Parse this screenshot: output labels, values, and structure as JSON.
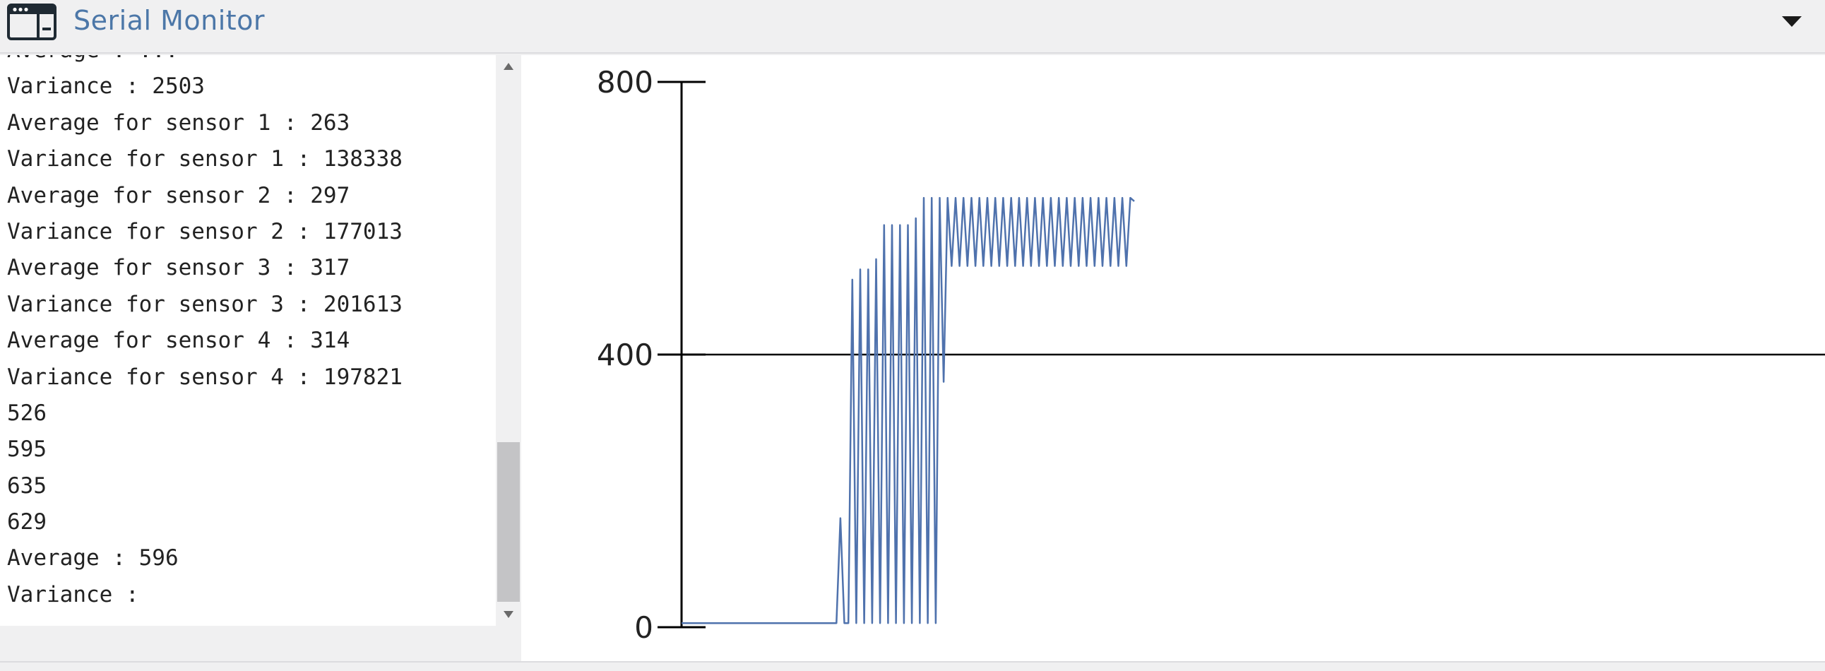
{
  "header": {
    "title": "Serial Monitor",
    "icon": "terminal-window-icon",
    "toggle_icon": "caret-down-icon"
  },
  "console": {
    "lines": [
      "Average : ...",
      "Variance : 2503",
      "Average for sensor 1 : 263",
      "Variance for sensor 1 : 138338",
      "Average for sensor 2 : 297",
      "Variance for sensor 2 : 177013",
      "Average for sensor 3 : 317",
      "Variance for sensor 3 : 201613",
      "Average for sensor 4 : 314",
      "Variance for sensor 4 : 197821",
      "526",
      "595",
      "635",
      "629",
      "Average : 596",
      "Variance :"
    ]
  },
  "colors": {
    "accent": "#4c77a8",
    "series": "#4f72ad",
    "axis": "#000000"
  },
  "chart_data": {
    "type": "line",
    "title": "",
    "xlabel": "",
    "ylabel": "",
    "ylim": [
      0,
      800
    ],
    "yticks": [
      0,
      400,
      800
    ],
    "xlim": [
      0,
      100
    ],
    "legend": "none",
    "gridlines_y": [
      400
    ],
    "series": [
      {
        "values": [
          6,
          6,
          6,
          6,
          6,
          6,
          6,
          6,
          6,
          6,
          6,
          6,
          6,
          6,
          6,
          6,
          6,
          6,
          6,
          6,
          6,
          6,
          6,
          6,
          6,
          6,
          6,
          6,
          6,
          6,
          6,
          6,
          6,
          6,
          6,
          6,
          6,
          6,
          6,
          6,
          160,
          6,
          6,
          510,
          6,
          525,
          6,
          525,
          6,
          540,
          6,
          590,
          6,
          590,
          6,
          590,
          6,
          590,
          6,
          600,
          6,
          630,
          6,
          630,
          6,
          630,
          360,
          630,
          530,
          630,
          530,
          630,
          530,
          630,
          530,
          630,
          530,
          630,
          530,
          630,
          530,
          630,
          530,
          630,
          530,
          630,
          530,
          630,
          530,
          630,
          530,
          630,
          530,
          630,
          530,
          630,
          530,
          630,
          530,
          630,
          530,
          630,
          530,
          630,
          530,
          630,
          530,
          630,
          530,
          630,
          530,
          630,
          530,
          630,
          625
        ]
      }
    ]
  }
}
